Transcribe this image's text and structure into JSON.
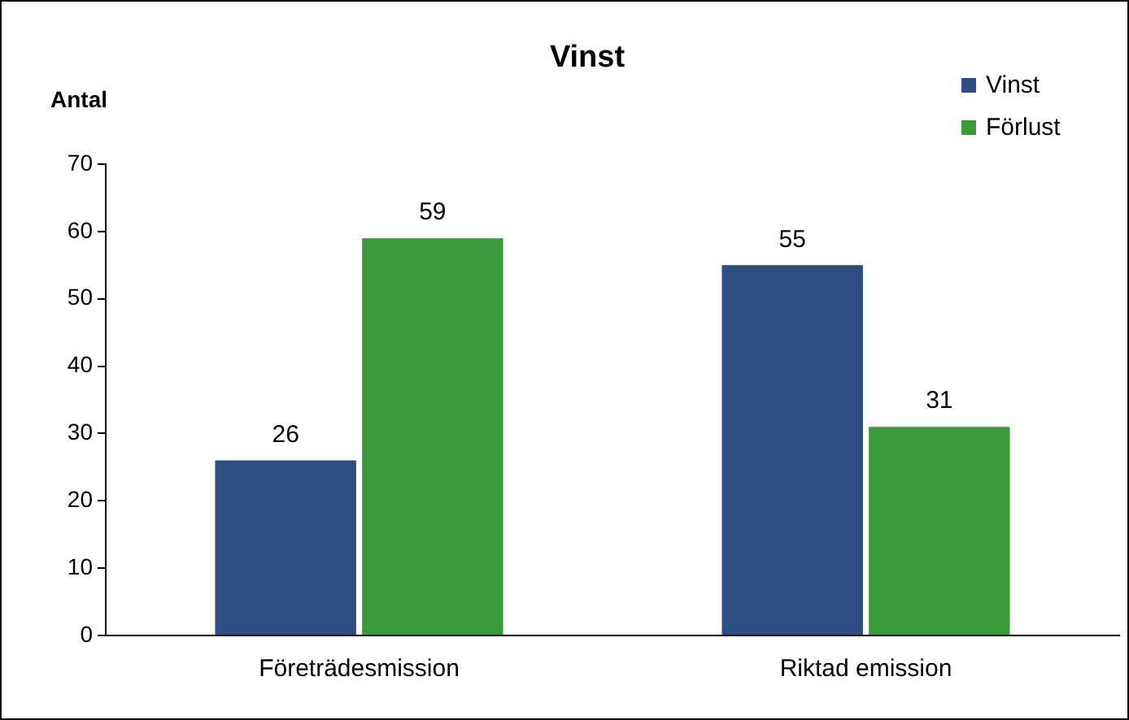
{
  "chart_data": {
    "type": "bar",
    "title": "Vinst",
    "ylabel": "Antal",
    "categories": [
      "Företrädesmission",
      "Riktad emission"
    ],
    "series": [
      {
        "name": "Vinst",
        "color": "#2e4d80",
        "values": [
          26,
          55
        ]
      },
      {
        "name": "Förlust",
        "color": "#3a9a3a",
        "values": [
          59,
          31
        ]
      }
    ],
    "ylim": [
      0,
      70
    ],
    "yticks": [
      0,
      10,
      20,
      30,
      40,
      50,
      60,
      70
    ],
    "grid": false,
    "legend": "top right",
    "data_labels": true
  }
}
